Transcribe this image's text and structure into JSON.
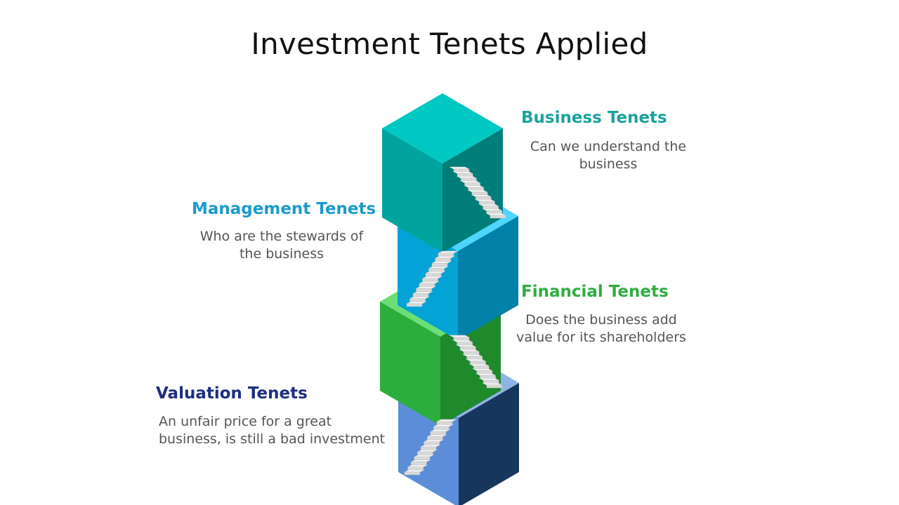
{
  "title": "Investment Tenets Applied",
  "tenets": [
    {
      "heading": "Business Tenets",
      "description": [
        "Can we understand the",
        "business"
      ],
      "color": "#1AA39B",
      "cube": {
        "top": "#00C8C2",
        "left": "#00A49E",
        "right": "#007E79"
      }
    },
    {
      "heading": "Management Tenets",
      "description": [
        "Who are the stewards of",
        "the business"
      ],
      "color": "#1A9CCB",
      "cube": {
        "top": "#4DD6FF",
        "left": "#03A3D6",
        "right": "#0180A8"
      }
    },
    {
      "heading": "Financial Tenets",
      "description": [
        "Does the business add",
        "value for its shareholders"
      ],
      "color": "#2EAE3E",
      "cube": {
        "top": "#6BDE78",
        "left": "#2BAE3C",
        "right": "#1E8A2C"
      }
    },
    {
      "heading": "Valuation Tenets",
      "description": [
        "An unfair price for a great",
        "business, is still a bad investment"
      ],
      "color": "#1E2F80",
      "cube": {
        "top": "#8EB3E6",
        "left": "#5B8DD9",
        "right": "#17365C"
      }
    }
  ]
}
